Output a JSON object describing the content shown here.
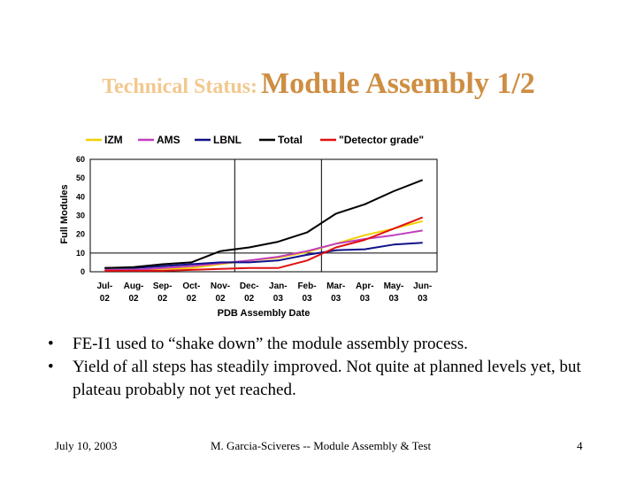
{
  "title": {
    "prefix": "Technical Status:",
    "main": "Module Assembly 1/2"
  },
  "chart_data": {
    "type": "line",
    "xlabel": "PDB Assembly Date",
    "ylabel": "Full Modules",
    "ylim": [
      0,
      60
    ],
    "yticks": [
      0,
      10,
      20,
      30,
      40,
      50,
      60
    ],
    "categories": [
      [
        "Jul-",
        "02"
      ],
      [
        "Aug-",
        "02"
      ],
      [
        "Sep-",
        "02"
      ],
      [
        "Oct-",
        "02"
      ],
      [
        "Nov-",
        "02"
      ],
      [
        "Dec-",
        "02"
      ],
      [
        "Jan-",
        "03"
      ],
      [
        "Feb-",
        "03"
      ],
      [
        "Mar-",
        "03"
      ],
      [
        "Apr-",
        "03"
      ],
      [
        "May-",
        "03"
      ],
      [
        "Jun-",
        "03"
      ]
    ],
    "legend_position": "top",
    "series": [
      {
        "name": "IZM",
        "color": "#f0d000",
        "points": [
          [
            0,
            1
          ],
          [
            1,
            1
          ],
          [
            2,
            1.5
          ],
          [
            3,
            2
          ],
          [
            3.5,
            3
          ],
          [
            4,
            4
          ],
          [
            5,
            6
          ],
          [
            6,
            7.5
          ],
          [
            7,
            10.5
          ],
          [
            8,
            15
          ],
          [
            9,
            19.5
          ],
          [
            10,
            23
          ],
          [
            11,
            27
          ]
        ]
      },
      {
        "name": "AMS",
        "color": "#c03ec0",
        "points": [
          [
            0,
            1
          ],
          [
            1,
            1
          ],
          [
            2,
            2
          ],
          [
            3,
            3
          ],
          [
            4,
            4.5
          ],
          [
            5,
            6
          ],
          [
            6,
            8
          ],
          [
            7,
            11
          ],
          [
            8,
            15
          ],
          [
            9,
            17.5
          ],
          [
            10,
            19.5
          ],
          [
            11,
            22
          ]
        ]
      },
      {
        "name": "LBNL",
        "color": "#10108a",
        "points": [
          [
            0,
            2
          ],
          [
            1,
            2
          ],
          [
            2,
            3
          ],
          [
            3,
            4
          ],
          [
            4,
            5
          ],
          [
            5,
            5
          ],
          [
            6,
            6
          ],
          [
            7,
            9
          ],
          [
            8,
            11.5
          ],
          [
            9,
            12
          ],
          [
            10,
            14.5
          ],
          [
            11,
            15.5
          ]
        ]
      },
      {
        "name": "Total",
        "color": "#000000",
        "points": [
          [
            0,
            2
          ],
          [
            1,
            2.5
          ],
          [
            2,
            4
          ],
          [
            3,
            5
          ],
          [
            4,
            11
          ],
          [
            5,
            13
          ],
          [
            6,
            16
          ],
          [
            7,
            21
          ],
          [
            8,
            31
          ],
          [
            9,
            36
          ],
          [
            10,
            43
          ],
          [
            11,
            49
          ]
        ]
      },
      {
        "name": "\"Detector grade\"",
        "color": "#e01010",
        "points": [
          [
            0,
            0.5
          ],
          [
            1,
            0.5
          ],
          [
            2,
            0.5
          ],
          [
            3,
            1
          ],
          [
            4,
            1.5
          ],
          [
            5,
            2
          ],
          [
            6,
            2
          ],
          [
            7,
            6
          ],
          [
            8,
            13
          ],
          [
            9,
            17
          ],
          [
            10,
            23
          ],
          [
            11,
            29
          ]
        ]
      }
    ],
    "vertical_lines_at": [
      4.5,
      7.5
    ],
    "reference_line_y": 10
  },
  "bullets": [
    "FE-I1 used to “shake down” the module assembly process.",
    "Yield of all steps has steadily improved. Not quite at planned levels yet, but plateau probably not yet reached."
  ],
  "footer": {
    "date": "July 10, 2003",
    "center": "M. Garcia-Sciveres -- Module Assembly & Test",
    "page": "4"
  }
}
